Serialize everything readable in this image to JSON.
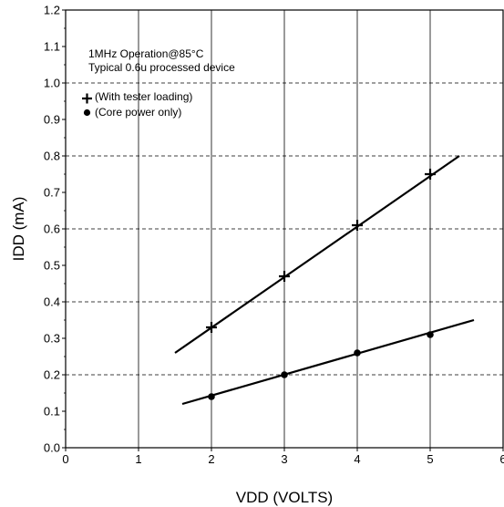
{
  "chart_data": {
    "type": "scatter",
    "title": "",
    "xlabel": "VDD (VOLTS)",
    "ylabel": "IDD (mA)",
    "xlim": [
      0,
      6
    ],
    "ylim": [
      0,
      1.2
    ],
    "x_ticks": [
      "0",
      "1",
      "2",
      "3",
      "4",
      "5",
      "6"
    ],
    "y_ticks": [
      "0.0",
      "0.1",
      "0.2",
      "0.3",
      "0.4",
      "0.5",
      "0.6",
      "0.7",
      "0.8",
      "0.9",
      "1.0",
      "1.1",
      "1.2"
    ],
    "grid": {
      "vertical": "solid",
      "horizontal_major": "dashed",
      "horizontal_major_values": [
        0.2,
        0.4,
        0.6,
        0.8,
        1.0
      ]
    },
    "annotations": [
      "1MHz Operation@85°C",
      "Typical 0.6u processed device"
    ],
    "series": [
      {
        "name": "(With tester loading)",
        "marker": "plus",
        "x": [
          2,
          3,
          4,
          5
        ],
        "y": [
          0.33,
          0.47,
          0.61,
          0.75
        ],
        "fit_line": {
          "x": [
            1.5,
            5.4
          ],
          "y": [
            0.26,
            0.8
          ]
        }
      },
      {
        "name": "(Core power only)",
        "marker": "dot",
        "x": [
          2,
          3,
          4,
          5
        ],
        "y": [
          0.14,
          0.2,
          0.26,
          0.31
        ],
        "fit_line": {
          "x": [
            1.6,
            5.6
          ],
          "y": [
            0.12,
            0.35
          ]
        }
      }
    ],
    "legend_position": "top-left"
  }
}
